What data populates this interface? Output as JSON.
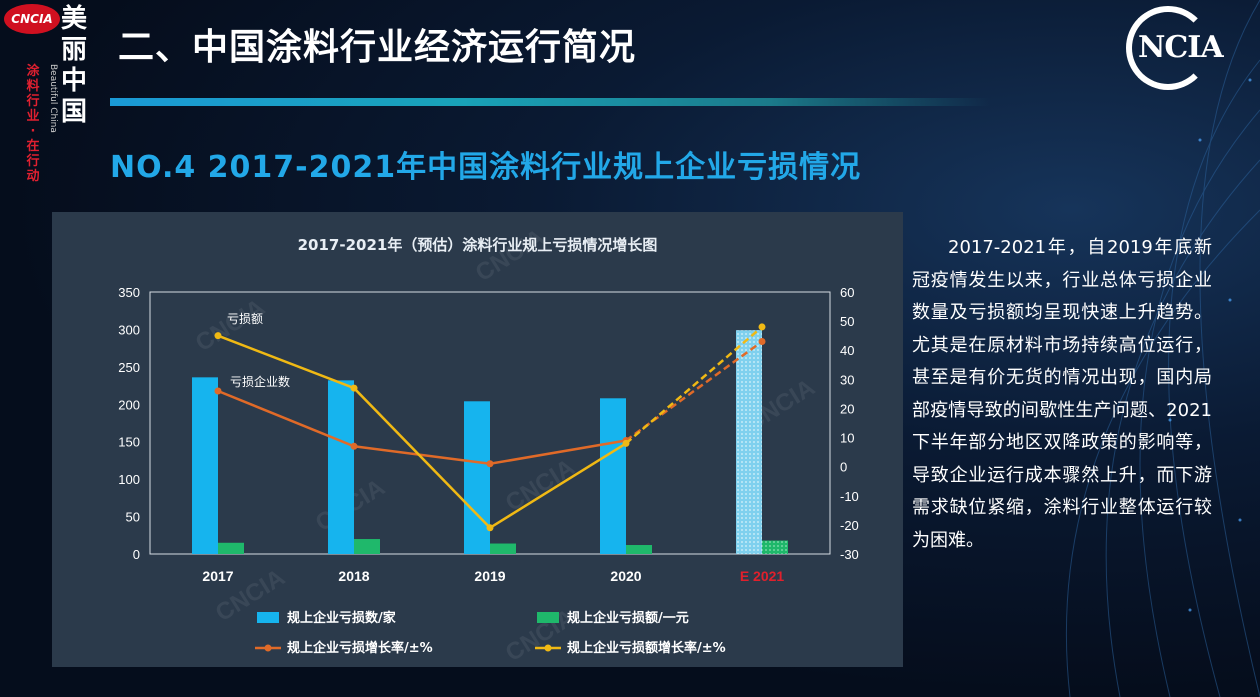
{
  "header": {
    "title": "二、中国涂料行业经济运行简况",
    "section_title": "NO.4 2017-2021年中国涂料行业规上企业亏损情况"
  },
  "logo_left": {
    "badge": "CNCIA",
    "vertical_text": [
      "美",
      "丽",
      "中",
      "国"
    ],
    "red_text": [
      "涂",
      "料",
      "行",
      "业",
      "·",
      "在",
      "行",
      "动"
    ],
    "small_text": "Beautiful China"
  },
  "logo_right": {
    "text": "NCIA"
  },
  "description": "2017-2021年，自2019年底新冠疫情发生以来，行业总体亏损企业数量及亏损额均呈现快速上升趋势。尤其是在原材料市场持续高位运行，甚至是有价无货的情况出现，国内局部疫情导致的间歇性生产问题、2021下半年部分地区双降政策的影响等，导致企业运行成本骤然上升，而下游需求缺位紧缩，涂料行业整体运行较为困难。",
  "chart_data": {
    "type": "bar",
    "title": "2017-2021年（预估）涂料行业规上亏损情况增长图",
    "categories": [
      "2017",
      "2018",
      "2019",
      "2020",
      "E 2021"
    ],
    "y_left": {
      "min": 0,
      "max": 350,
      "ticks": [
        0,
        50,
        100,
        150,
        200,
        250,
        300,
        350
      ]
    },
    "y_right": {
      "min": -30,
      "max": 60,
      "ticks": [
        -30,
        -20,
        -10,
        0,
        10,
        20,
        30,
        40,
        50,
        60
      ]
    },
    "series": [
      {
        "name": "规上企业亏损数/家",
        "kind": "bar",
        "axis": "left",
        "color": "#16b4ee",
        "values": [
          236,
          232,
          204,
          208,
          299
        ]
      },
      {
        "name": "规上企业亏损额/一元",
        "kind": "bar",
        "axis": "left",
        "color": "#1fb86b",
        "values": [
          15,
          20,
          14,
          12,
          18
        ]
      },
      {
        "name": "规上企业亏损增长率/±%",
        "kind": "line",
        "axis": "right",
        "color": "#e06a28",
        "values": [
          26,
          7,
          1,
          9,
          43
        ]
      },
      {
        "name": "规上企业亏损额增长率/±%",
        "kind": "line",
        "axis": "right",
        "color": "#f0b914",
        "values": [
          45,
          27,
          -21,
          8,
          48
        ]
      }
    ],
    "annotations": [
      {
        "text": "亏损额"
      },
      {
        "text": "亏损企业数"
      }
    ],
    "watermark": "CNCIA",
    "highlight_category_color": "#e0202c",
    "legend_placement": "bottom"
  }
}
